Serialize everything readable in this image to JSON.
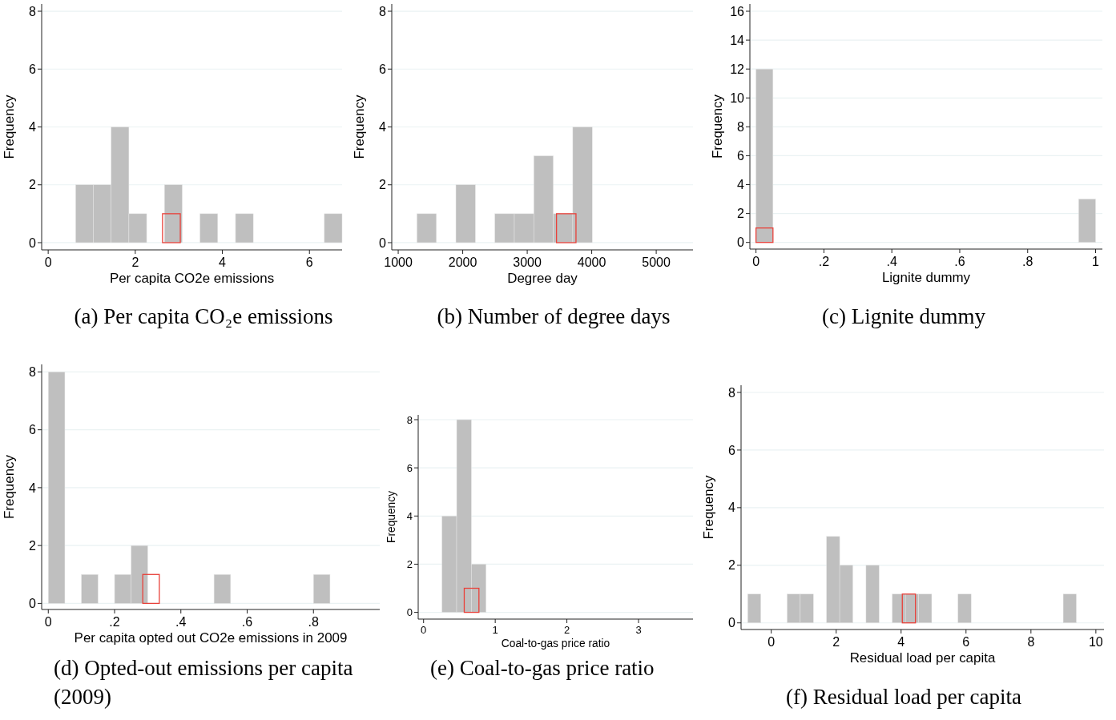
{
  "chart_data": [
    {
      "type": "histogram",
      "title": "(a) Per capita CO₂e emissions",
      "xlabel": "Per capita CO2e emissions",
      "ylabel": "Frequency",
      "xlim": [
        -0.15,
        6.75
      ],
      "xticks": [
        0,
        2,
        4,
        6
      ],
      "ylim": [
        -0.25,
        8.25
      ],
      "yticks": [
        0,
        2,
        4,
        6,
        8
      ],
      "grid": "y",
      "bins": [
        0.63,
        1.038,
        1.446,
        1.854,
        2.262,
        2.67,
        3.078,
        3.486,
        3.894,
        4.302,
        4.71,
        5.118,
        5.526,
        5.934,
        6.342,
        6.75
      ],
      "series": [
        {
          "color": "#bfbfbf",
          "values": [
            2,
            2,
            4,
            1,
            0,
            2,
            0,
            1,
            0,
            1,
            0,
            0,
            0,
            0,
            1
          ]
        },
        {
          "type": "bar",
          "color": "#e8413a",
          "x": [
            2.83
          ],
          "values": [
            1
          ]
        }
      ]
    },
    {
      "type": "histogram",
      "title": "(b) Number of degree days",
      "xlabel": "Degree day",
      "ylabel": "Frequency",
      "xlim": [
        900,
        5570
      ],
      "xticks": [
        1000,
        2000,
        3000,
        4000,
        5000
      ],
      "ylim": [
        -0.25,
        8.25
      ],
      "yticks": [
        0,
        2,
        4,
        6,
        8
      ],
      "grid": "y",
      "bins": [
        1290,
        1592,
        1894,
        2196,
        2498,
        2800,
        3102,
        3404,
        3706,
        4008
      ],
      "series": [
        {
          "color": "#bfbfbf",
          "values": [
            1,
            0,
            2,
            0,
            1,
            1,
            3,
            1,
            4
          ]
        },
        {
          "type": "bar",
          "color": "#e8413a",
          "x": [
            3605
          ],
          "values": [
            1
          ]
        }
      ]
    },
    {
      "type": "histogram",
      "title": "(c) Lignite dummy",
      "xlabel": "Lignite dummy",
      "ylabel": "Frequency",
      "xlim": [
        -0.018,
        1.02
      ],
      "xticks": [
        0,
        {
          "value": 0.2,
          "label": ".2"
        },
        {
          "value": 0.4,
          "label": ".4"
        },
        {
          "value": 0.6,
          "label": ".6"
        },
        {
          "value": 0.8,
          "label": ".8"
        },
        1
      ],
      "ylim": [
        -0.46,
        16.5
      ],
      "yticks": [
        0,
        2,
        4,
        6,
        8,
        10,
        12,
        14,
        16
      ],
      "grid": "y",
      "bins": [
        0,
        0.05,
        0.1,
        0.15,
        0.2,
        0.25,
        0.3,
        0.35,
        0.4,
        0.45,
        0.5,
        0.55,
        0.6,
        0.65,
        0.7,
        0.75,
        0.8,
        0.85,
        0.9,
        0.95,
        1
      ],
      "series": [
        {
          "color": "#bfbfbf",
          "values": [
            12,
            0,
            0,
            0,
            0,
            0,
            0,
            0,
            0,
            0,
            0,
            0,
            0,
            0,
            0,
            0,
            0,
            0,
            0,
            3
          ]
        },
        {
          "type": "bar",
          "color": "#e8413a",
          "x": [
            0.025
          ],
          "values": [
            1
          ]
        }
      ]
    },
    {
      "type": "histogram",
      "title": "(d) Opted-out emissions per capita (2009)",
      "xlabel": "Per capita opted out CO2e emissions in 2009",
      "ylabel": "Frequency",
      "xlim": [
        -0.02,
        1.0
      ],
      "xticks": [
        0,
        {
          "value": 0.2,
          "label": ".2"
        },
        {
          "value": 0.4,
          "label": ".4"
        },
        {
          "value": 0.6,
          "label": ".6"
        },
        {
          "value": 0.8,
          "label": ".8"
        }
      ],
      "ylim": [
        -0.21,
        8.26
      ],
      "yticks": [
        0,
        2,
        4,
        6,
        8
      ],
      "grid": "y",
      "bins": [
        0,
        0.05,
        0.1,
        0.15,
        0.2,
        0.25,
        0.3,
        0.35,
        0.4,
        0.45,
        0.5,
        0.55,
        0.6,
        0.65,
        0.7,
        0.75,
        0.8,
        0.85
      ],
      "series": [
        {
          "color": "#bfbfbf",
          "values": [
            8,
            0,
            1,
            0,
            1,
            2,
            0,
            0,
            0,
            0,
            1,
            0,
            0,
            0,
            0,
            0,
            1
          ]
        },
        {
          "type": "bar",
          "color": "#e8413a",
          "x": [
            0.31
          ],
          "values": [
            1
          ]
        }
      ]
    },
    {
      "type": "histogram",
      "title": "(e) Coal-to-gas price ratio",
      "xlabel": "Coal-to-gas price ratio",
      "ylabel": "Frequency",
      "xlim": [
        -0.075,
        3.76
      ],
      "xticks": [
        0,
        1,
        2,
        3
      ],
      "ylim": [
        -0.28,
        8.2
      ],
      "yticks": [
        0,
        2,
        4,
        6,
        8
      ],
      "grid": "y",
      "bins": [
        0.257,
        0.462,
        0.667,
        0.872
      ],
      "series": [
        {
          "color": "#bfbfbf",
          "values": [
            4,
            8,
            2
          ]
        },
        {
          "type": "bar",
          "color": "#e8413a",
          "x": [
            0.67
          ],
          "values": [
            1
          ]
        }
      ]
    },
    {
      "type": "histogram",
      "title": "(f) Residual load per capita",
      "xlabel": "Residual load per capita",
      "ylabel": "Frequency",
      "xlim": [
        -0.93,
        10.25
      ],
      "xticks": [
        0,
        2,
        4,
        6,
        8,
        10
      ],
      "ylim": [
        -0.23,
        8.25
      ],
      "yticks": [
        0,
        2,
        4,
        6,
        8
      ],
      "grid": "y",
      "bins": [
        -0.727,
        -0.322,
        0.083,
        0.488,
        0.893,
        1.298,
        1.703,
        2.108,
        2.513,
        2.918,
        3.323,
        3.728,
        4.133,
        4.538,
        4.943,
        5.348,
        5.753,
        6.158,
        6.563,
        6.968,
        7.373,
        7.778,
        8.183,
        8.588,
        8.993,
        9.398
      ],
      "series": [
        {
          "color": "#bfbfbf",
          "values": [
            1,
            0,
            0,
            1,
            1,
            0,
            3,
            2,
            0,
            2,
            0,
            1,
            1,
            1,
            0,
            0,
            1,
            0,
            0,
            0,
            0,
            0,
            0,
            0,
            1
          ]
        },
        {
          "type": "bar",
          "color": "#e8413a",
          "x": [
            4.24
          ],
          "values": [
            1
          ]
        }
      ]
    }
  ]
}
